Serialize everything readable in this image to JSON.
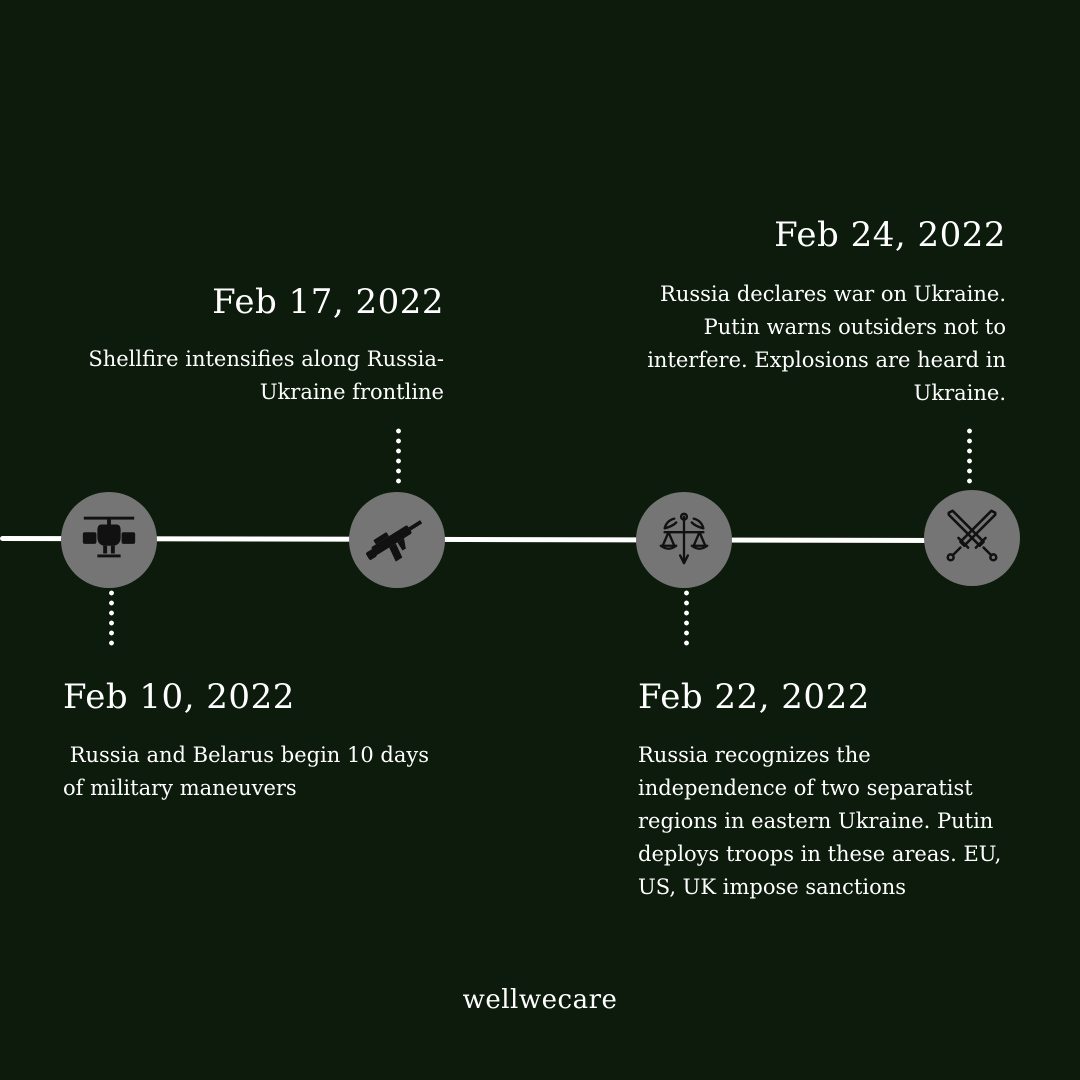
{
  "events": [
    {
      "date": "Feb 10, 2022",
      "desc": " Russia and Belarus begin 10 days of military maneuvers",
      "icon": "helicopter-icon"
    },
    {
      "date": "Feb 17, 2022",
      "desc": "Shellfire intensifies along Russia-Ukraine frontline",
      "icon": "rifle-icon"
    },
    {
      "date": "Feb 22, 2022",
      "desc": "Russia recognizes the independence of two separatist regions in eastern Ukraine. Putin deploys troops in these areas. EU, US, UK impose sanctions",
      "icon": "justice-scales-icon"
    },
    {
      "date": "Feb 24, 2022",
      "desc": "Russia declares war on Ukraine. Putin warns outsiders not to interfere. Explosions are heard in Ukraine.",
      "icon": "crossed-swords-icon"
    }
  ],
  "brand": "wellwecare",
  "colors": {
    "background": "#0c1b0c",
    "node": "#757575",
    "line": "#ffffff",
    "text": "#ffffff"
  }
}
